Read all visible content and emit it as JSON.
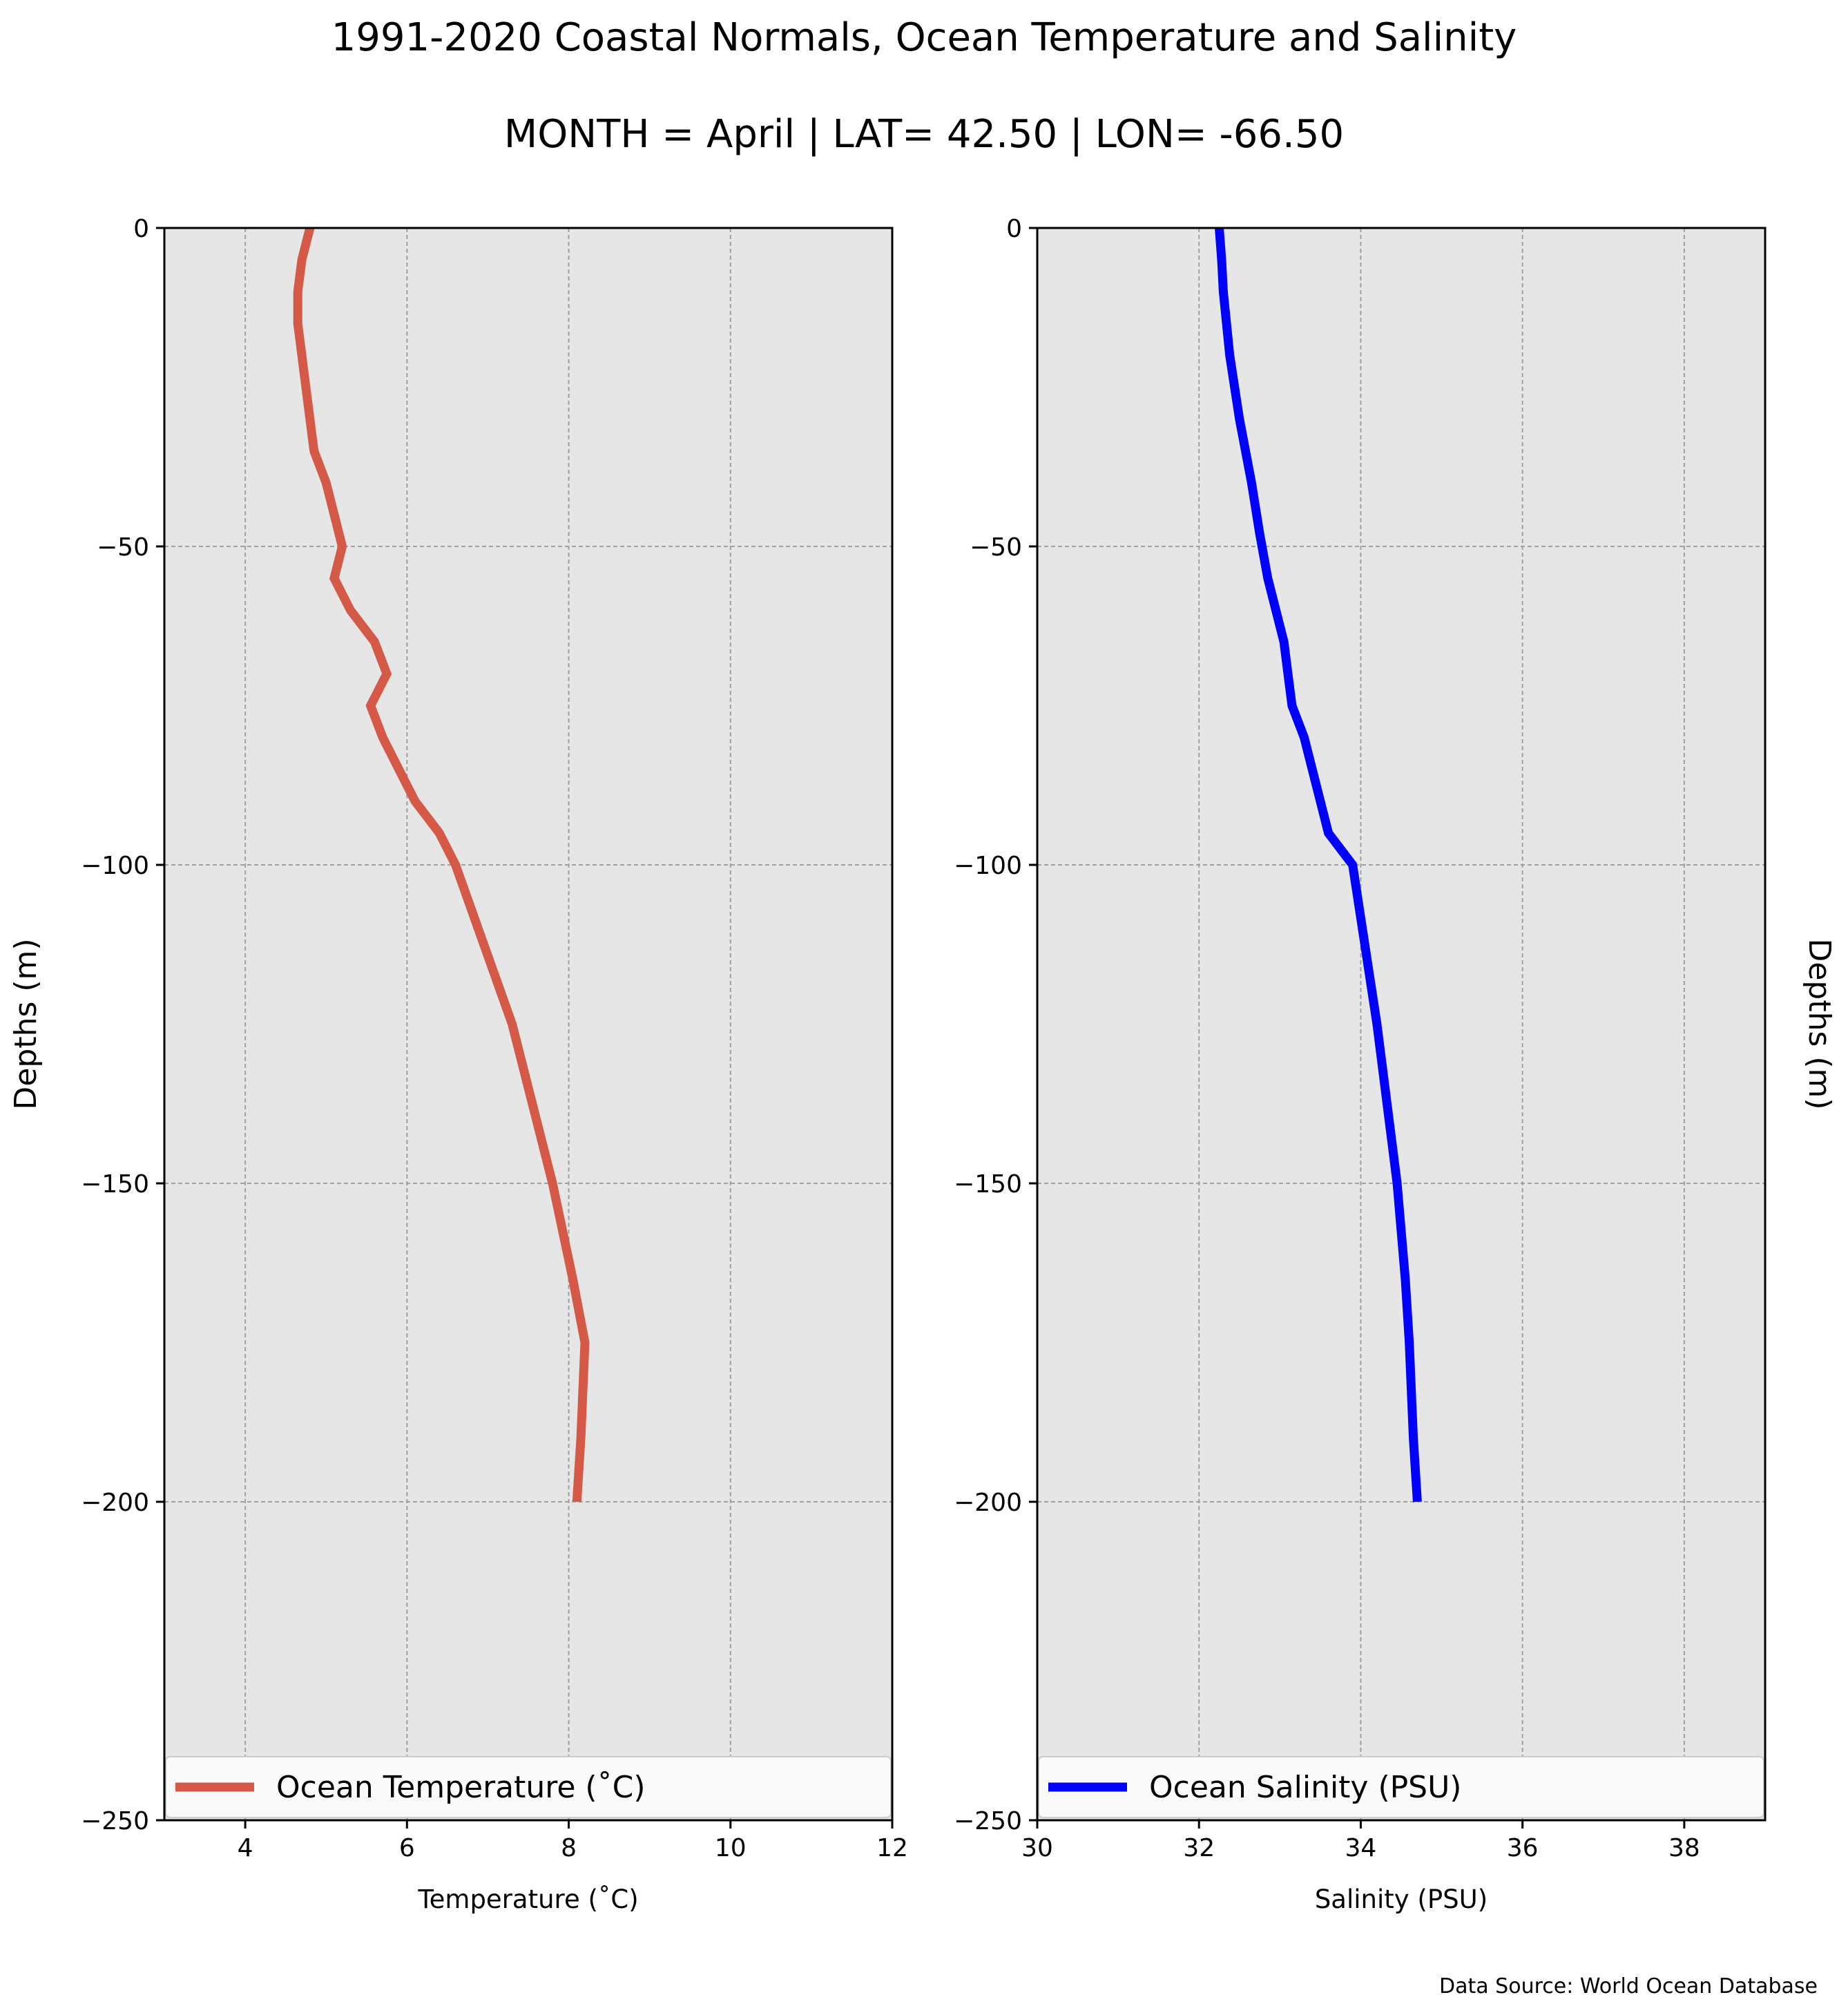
{
  "title": "1991-2020 Coastal Normals, Ocean Temperature and Salinity",
  "subtitle": "MONTH = April | LAT= 42.50 | LON= -66.50",
  "footer": "Data Source: World Ocean Database",
  "colors": {
    "temperature": "#d45a47",
    "salinity": "#0000ff",
    "plot_bg": "#e6e6e6",
    "grid": "#a0a0a0"
  },
  "chart_data": [
    {
      "type": "line",
      "series": [
        {
          "name": "Ocean Temperature ($^\\circ$C)",
          "legend_label": "Ocean Temperature (˚C)",
          "x": [
            4.8,
            4.7,
            4.65,
            4.65,
            4.7,
            4.75,
            4.85,
            5.0,
            5.1,
            5.2,
            5.1,
            5.3,
            5.6,
            5.75,
            5.55,
            5.7,
            6.1,
            6.4,
            6.6,
            7.3,
            7.8,
            8.05,
            8.2,
            8.15,
            8.1
          ],
          "y": [
            0,
            -5,
            -10,
            -15,
            -20,
            -25,
            -35,
            -40,
            -45,
            -50,
            -55,
            -60,
            -65,
            -70,
            -75,
            -80,
            -90,
            -95,
            -100,
            -125,
            -150,
            -165,
            -175,
            -190,
            -200
          ]
        }
      ],
      "xlabel": "Temperature (˚C)",
      "ylabel": "Depths (m)",
      "xlim": [
        3,
        12
      ],
      "ylim": [
        -250,
        0
      ],
      "xticks": [
        4,
        6,
        8,
        10,
        12
      ],
      "yticks": [
        0,
        -50,
        -100,
        -150,
        -200,
        -250
      ],
      "ytick_labels": [
        "0",
        "−50",
        "−100",
        "−150",
        "−200",
        "−250"
      ],
      "grid": true,
      "legend": "bottom"
    },
    {
      "type": "line",
      "series": [
        {
          "name": "Ocean Salinity (PSU)",
          "legend_label": "Ocean Salinity (PSU)",
          "x": [
            32.25,
            32.28,
            32.3,
            32.38,
            32.5,
            32.65,
            32.75,
            32.85,
            33.05,
            33.1,
            33.15,
            33.3,
            33.5,
            33.6,
            33.9,
            34.2,
            34.45,
            34.55,
            34.6,
            34.65,
            34.7
          ],
          "y": [
            0,
            -5,
            -10,
            -20,
            -30,
            -40,
            -48,
            -55,
            -65,
            -70,
            -75,
            -80,
            -90,
            -95,
            -100,
            -125,
            -150,
            -165,
            -175,
            -190,
            -200
          ]
        }
      ],
      "xlabel": "Salinity (PSU)",
      "ylabel": "Depths (m)",
      "xlim": [
        30,
        39
      ],
      "ylim": [
        -250,
        0
      ],
      "xticks": [
        30,
        32,
        34,
        36,
        38
      ],
      "yticks": [
        0,
        -50,
        -100,
        -150,
        -200,
        -250
      ],
      "ytick_labels": [
        "0",
        "−50",
        "−100",
        "−150",
        "−200",
        "−250"
      ],
      "grid": true,
      "legend": "bottom"
    }
  ]
}
